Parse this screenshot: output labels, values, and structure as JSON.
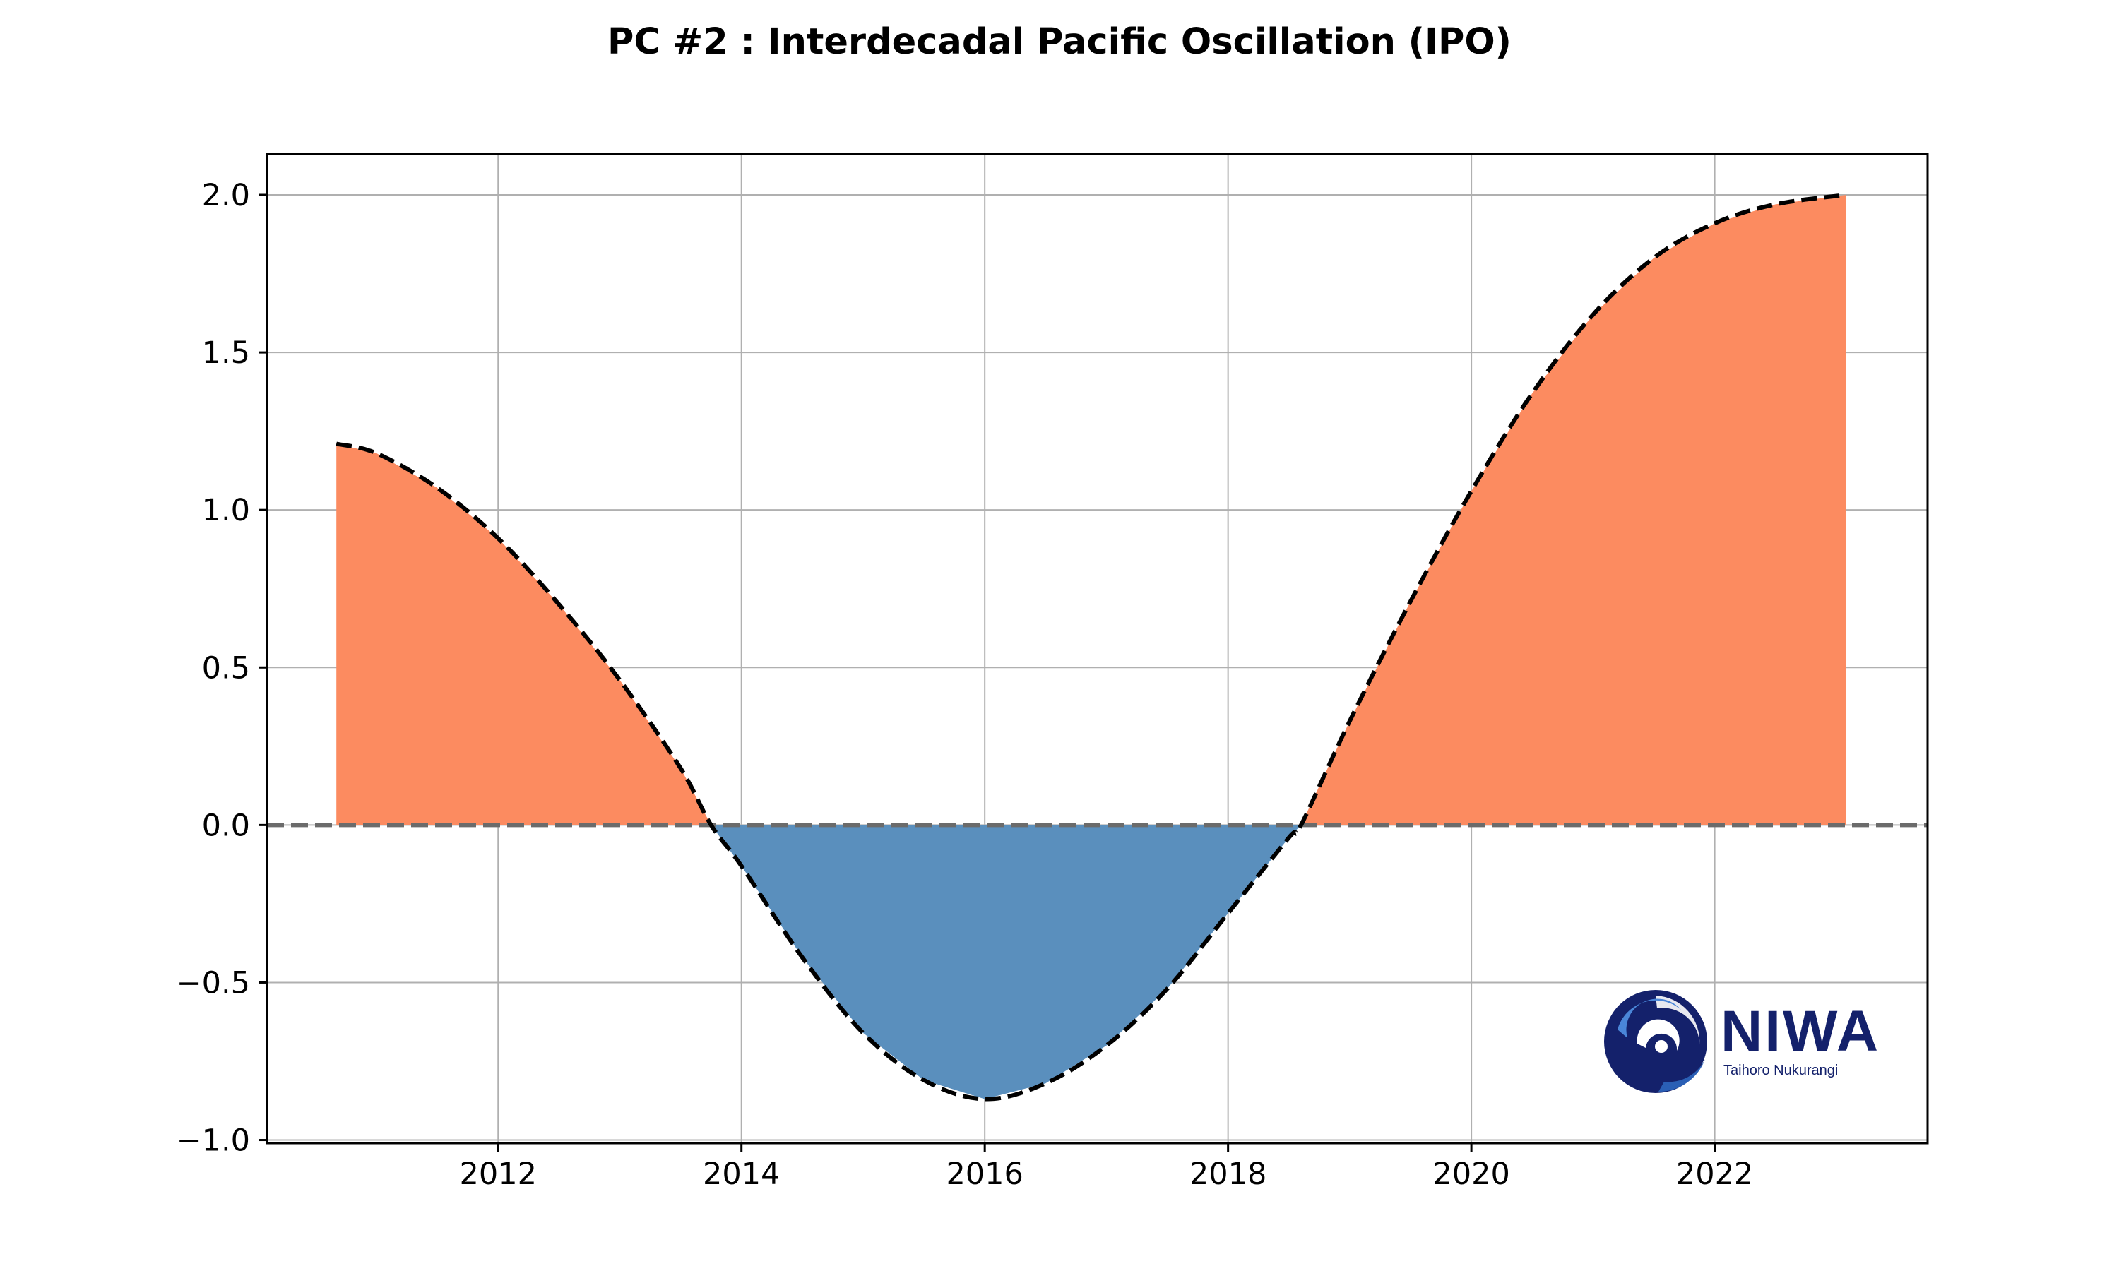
{
  "chart_data": {
    "type": "area",
    "title": "PC #2 : Interdecadal Pacific Oscillation (IPO)",
    "xlabel": "",
    "ylabel": "",
    "xlim": [
      2010.1,
      2023.75
    ],
    "ylim": [
      -1.01,
      2.13
    ],
    "grid": true,
    "legend": "none",
    "x_ticks": [
      2012,
      2014,
      2016,
      2018,
      2020,
      2022
    ],
    "x_tick_labels": [
      "2012",
      "2014",
      "2016",
      "2018",
      "2020",
      "2022"
    ],
    "y_ticks": [
      -1.0,
      -0.5,
      0.0,
      0.5,
      1.0,
      1.5,
      2.0
    ],
    "y_tick_labels": [
      "−1.0",
      "−0.5",
      "0.0",
      "0.5",
      "1.0",
      "1.5",
      "2.0"
    ],
    "reference_line": {
      "y": 0.0,
      "style": "dashed",
      "color": "#6b6b6b"
    },
    "series": [
      {
        "name": "PC #2",
        "line_style": "dashed",
        "line_color": "#000000",
        "positive_fill": "#fc8b60",
        "negative_fill": "#5a8fbd",
        "x": [
          2010.67,
          2011.0,
          2011.5,
          2012.0,
          2012.5,
          2013.0,
          2013.5,
          2013.75,
          2014.0,
          2014.5,
          2015.0,
          2015.5,
          2016.0,
          2016.5,
          2017.0,
          2017.5,
          2018.0,
          2018.5,
          2018.6,
          2019.0,
          2019.5,
          2020.0,
          2020.5,
          2021.0,
          2021.5,
          2022.0,
          2022.5,
          2023.08
        ],
        "y": [
          1.21,
          1.18,
          1.07,
          0.91,
          0.7,
          0.46,
          0.18,
          0.0,
          -0.13,
          -0.42,
          -0.66,
          -0.81,
          -0.87,
          -0.82,
          -0.7,
          -0.52,
          -0.28,
          -0.04,
          0.0,
          0.33,
          0.71,
          1.06,
          1.37,
          1.62,
          1.8,
          1.91,
          1.97,
          2.0
        ]
      }
    ]
  },
  "logo": {
    "wordmark": "NIWA",
    "tagline": "Taihoro Nukurangi",
    "primary_color": "#14216b",
    "secondary_color": "#2a5fb5"
  }
}
